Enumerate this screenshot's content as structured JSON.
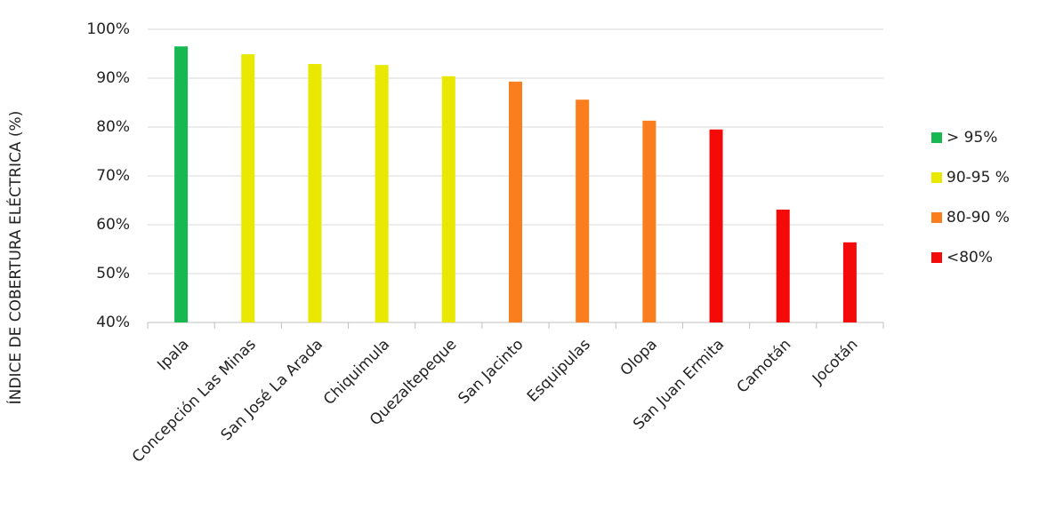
{
  "chart_data": {
    "type": "bar",
    "y_label": "ÍNDICE DE COBERTURA ELÉCTRICA (%)",
    "categories": [
      "Ipala",
      "Concepción Las Minas",
      "San José La Arada",
      "Chiquimula",
      "Quezaltepeque",
      "San Jacinto",
      "Esquipulas",
      "Olopa",
      "San Juan Ermita",
      "Camotán",
      "Jocotán"
    ],
    "values": [
      96.5,
      94.9,
      92.9,
      92.7,
      90.4,
      89.3,
      85.6,
      81.3,
      79.5,
      63.1,
      56.4
    ],
    "colors": [
      "#17b851",
      "#e8e800",
      "#e8e800",
      "#e8e800",
      "#e8e800",
      "#fa7d1e",
      "#fa7d1e",
      "#fa7d1e",
      "#f50a0a",
      "#f50a0a",
      "#f50a0a"
    ],
    "ylim": [
      40,
      100
    ],
    "yticks": [
      {
        "value": 40,
        "label": "40%"
      },
      {
        "value": 50,
        "label": "50%"
      },
      {
        "value": 60,
        "label": "60%"
      },
      {
        "value": 70,
        "label": "70%"
      },
      {
        "value": 80,
        "label": "80%"
      },
      {
        "value": 90,
        "label": "90%"
      },
      {
        "value": 100,
        "label": "100%"
      }
    ],
    "grid": true,
    "legend_position": "right",
    "legend": [
      {
        "label": "> 95%",
        "color": "#17b851"
      },
      {
        "label": "90-95 %",
        "color": "#e8e800"
      },
      {
        "label": "80-90 %",
        "color": "#fa7d1e"
      },
      {
        "label": "<80%",
        "color": "#f50a0a"
      }
    ]
  }
}
